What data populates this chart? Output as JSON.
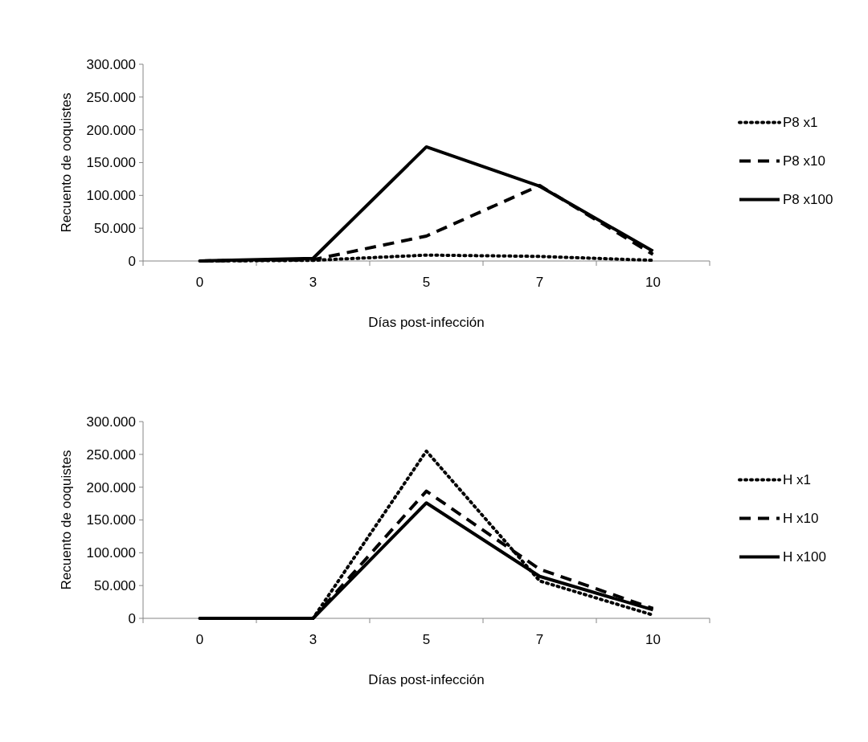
{
  "chart_data": [
    {
      "type": "line",
      "xlabel": "Días post-infección",
      "ylabel": "Recuento de ooquistes",
      "categories": [
        "0",
        "3",
        "5",
        "7",
        "10"
      ],
      "ylim": [
        0,
        300000
      ],
      "yticks": [
        {
          "value": 0,
          "label": "0"
        },
        {
          "value": 50000,
          "label": "50.000"
        },
        {
          "value": 100000,
          "label": "100.000"
        },
        {
          "value": 150000,
          "label": "150.000"
        },
        {
          "value": 200000,
          "label": "200.000"
        },
        {
          "value": 250000,
          "label": "250.000"
        },
        {
          "value": 300000,
          "label": "300.000"
        }
      ],
      "grid": false,
      "legend": "right",
      "series": [
        {
          "name": "P8 x1",
          "color": "#000000",
          "line_style": "dotted",
          "values": [
            0,
            1000,
            9000,
            7000,
            1000
          ]
        },
        {
          "name": "P8 x10",
          "color": "#000000",
          "line_style": "dashed",
          "values": [
            0,
            2000,
            38000,
            115000,
            10000
          ]
        },
        {
          "name": "P8 x100",
          "color": "#000000",
          "line_style": "solid",
          "values": [
            0,
            4000,
            174000,
            114000,
            15000
          ]
        }
      ]
    },
    {
      "type": "line",
      "xlabel": "Días post-infección",
      "ylabel": "Recuento de ooquistes",
      "categories": [
        "0",
        "3",
        "5",
        "7",
        "10"
      ],
      "ylim": [
        0,
        300000
      ],
      "yticks": [
        {
          "value": 0,
          "label": "0"
        },
        {
          "value": 50000,
          "label": "50.000"
        },
        {
          "value": 100000,
          "label": "100.000"
        },
        {
          "value": 150000,
          "label": "150.000"
        },
        {
          "value": 200000,
          "label": "200.000"
        },
        {
          "value": 250000,
          "label": "250.000"
        },
        {
          "value": 300000,
          "label": "300.000"
        }
      ],
      "grid": false,
      "legend": "right",
      "series": [
        {
          "name": "H x1",
          "color": "#000000",
          "line_style": "dotted",
          "values": [
            0,
            0,
            255000,
            57000,
            5000
          ]
        },
        {
          "name": "H x10",
          "color": "#000000",
          "line_style": "dashed",
          "values": [
            0,
            0,
            194000,
            75000,
            15000
          ]
        },
        {
          "name": "H x100",
          "color": "#000000",
          "line_style": "solid",
          "values": [
            0,
            0,
            176000,
            64000,
            13000
          ]
        }
      ]
    }
  ]
}
